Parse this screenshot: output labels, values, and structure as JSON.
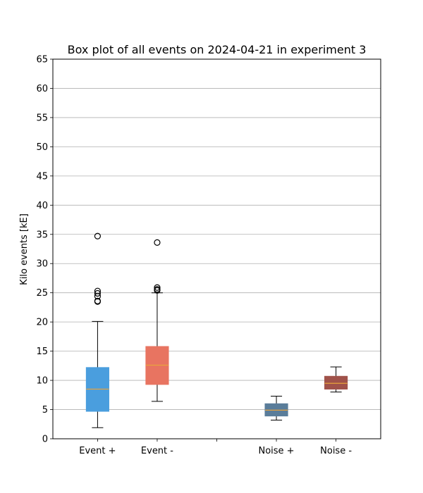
{
  "chart_data": {
    "type": "box",
    "title": "Box plot of all events on 2024-04-21 in experiment 3",
    "xlabel": "",
    "ylabel": "Kilo events [kE]",
    "ylim": [
      0,
      65
    ],
    "yticks": [
      0,
      5,
      10,
      15,
      20,
      25,
      30,
      35,
      40,
      45,
      50,
      55,
      60,
      65
    ],
    "grid": "y",
    "categories": [
      "Event +",
      "Event -",
      "",
      "Noise +",
      "Noise -"
    ],
    "boxes": [
      {
        "name": "Event +",
        "position": 1,
        "color": "#4a9ede",
        "median_color": "#e8a33d",
        "whisker_low": 1.9,
        "q1": 4.7,
        "median": 8.5,
        "q3": 12.2,
        "whisker_high": 20.1,
        "outliers": [
          34.7,
          25.3,
          24.9,
          24.4,
          23.6,
          23.5
        ]
      },
      {
        "name": "Event -",
        "position": 2,
        "color": "#e87461",
        "median_color": "#e8a33d",
        "whisker_low": 6.4,
        "q1": 9.3,
        "median": 12.6,
        "q3": 15.8,
        "whisker_high": 25.0,
        "outliers": [
          33.6,
          25.9,
          25.6,
          25.4
        ]
      },
      {
        "name": "Noise +",
        "position": 4,
        "color": "#5a7d9a",
        "median_color": "#e8a33d",
        "whisker_low": 3.2,
        "q1": 3.9,
        "median": 4.9,
        "q3": 6.0,
        "whisker_high": 7.3,
        "outliers": []
      },
      {
        "name": "Noise -",
        "position": 5,
        "color": "#a0524a",
        "median_color": "#e8a33d",
        "whisker_low": 8.0,
        "q1": 8.5,
        "median": 9.5,
        "q3": 10.7,
        "whisker_high": 12.3,
        "outliers": []
      }
    ]
  }
}
